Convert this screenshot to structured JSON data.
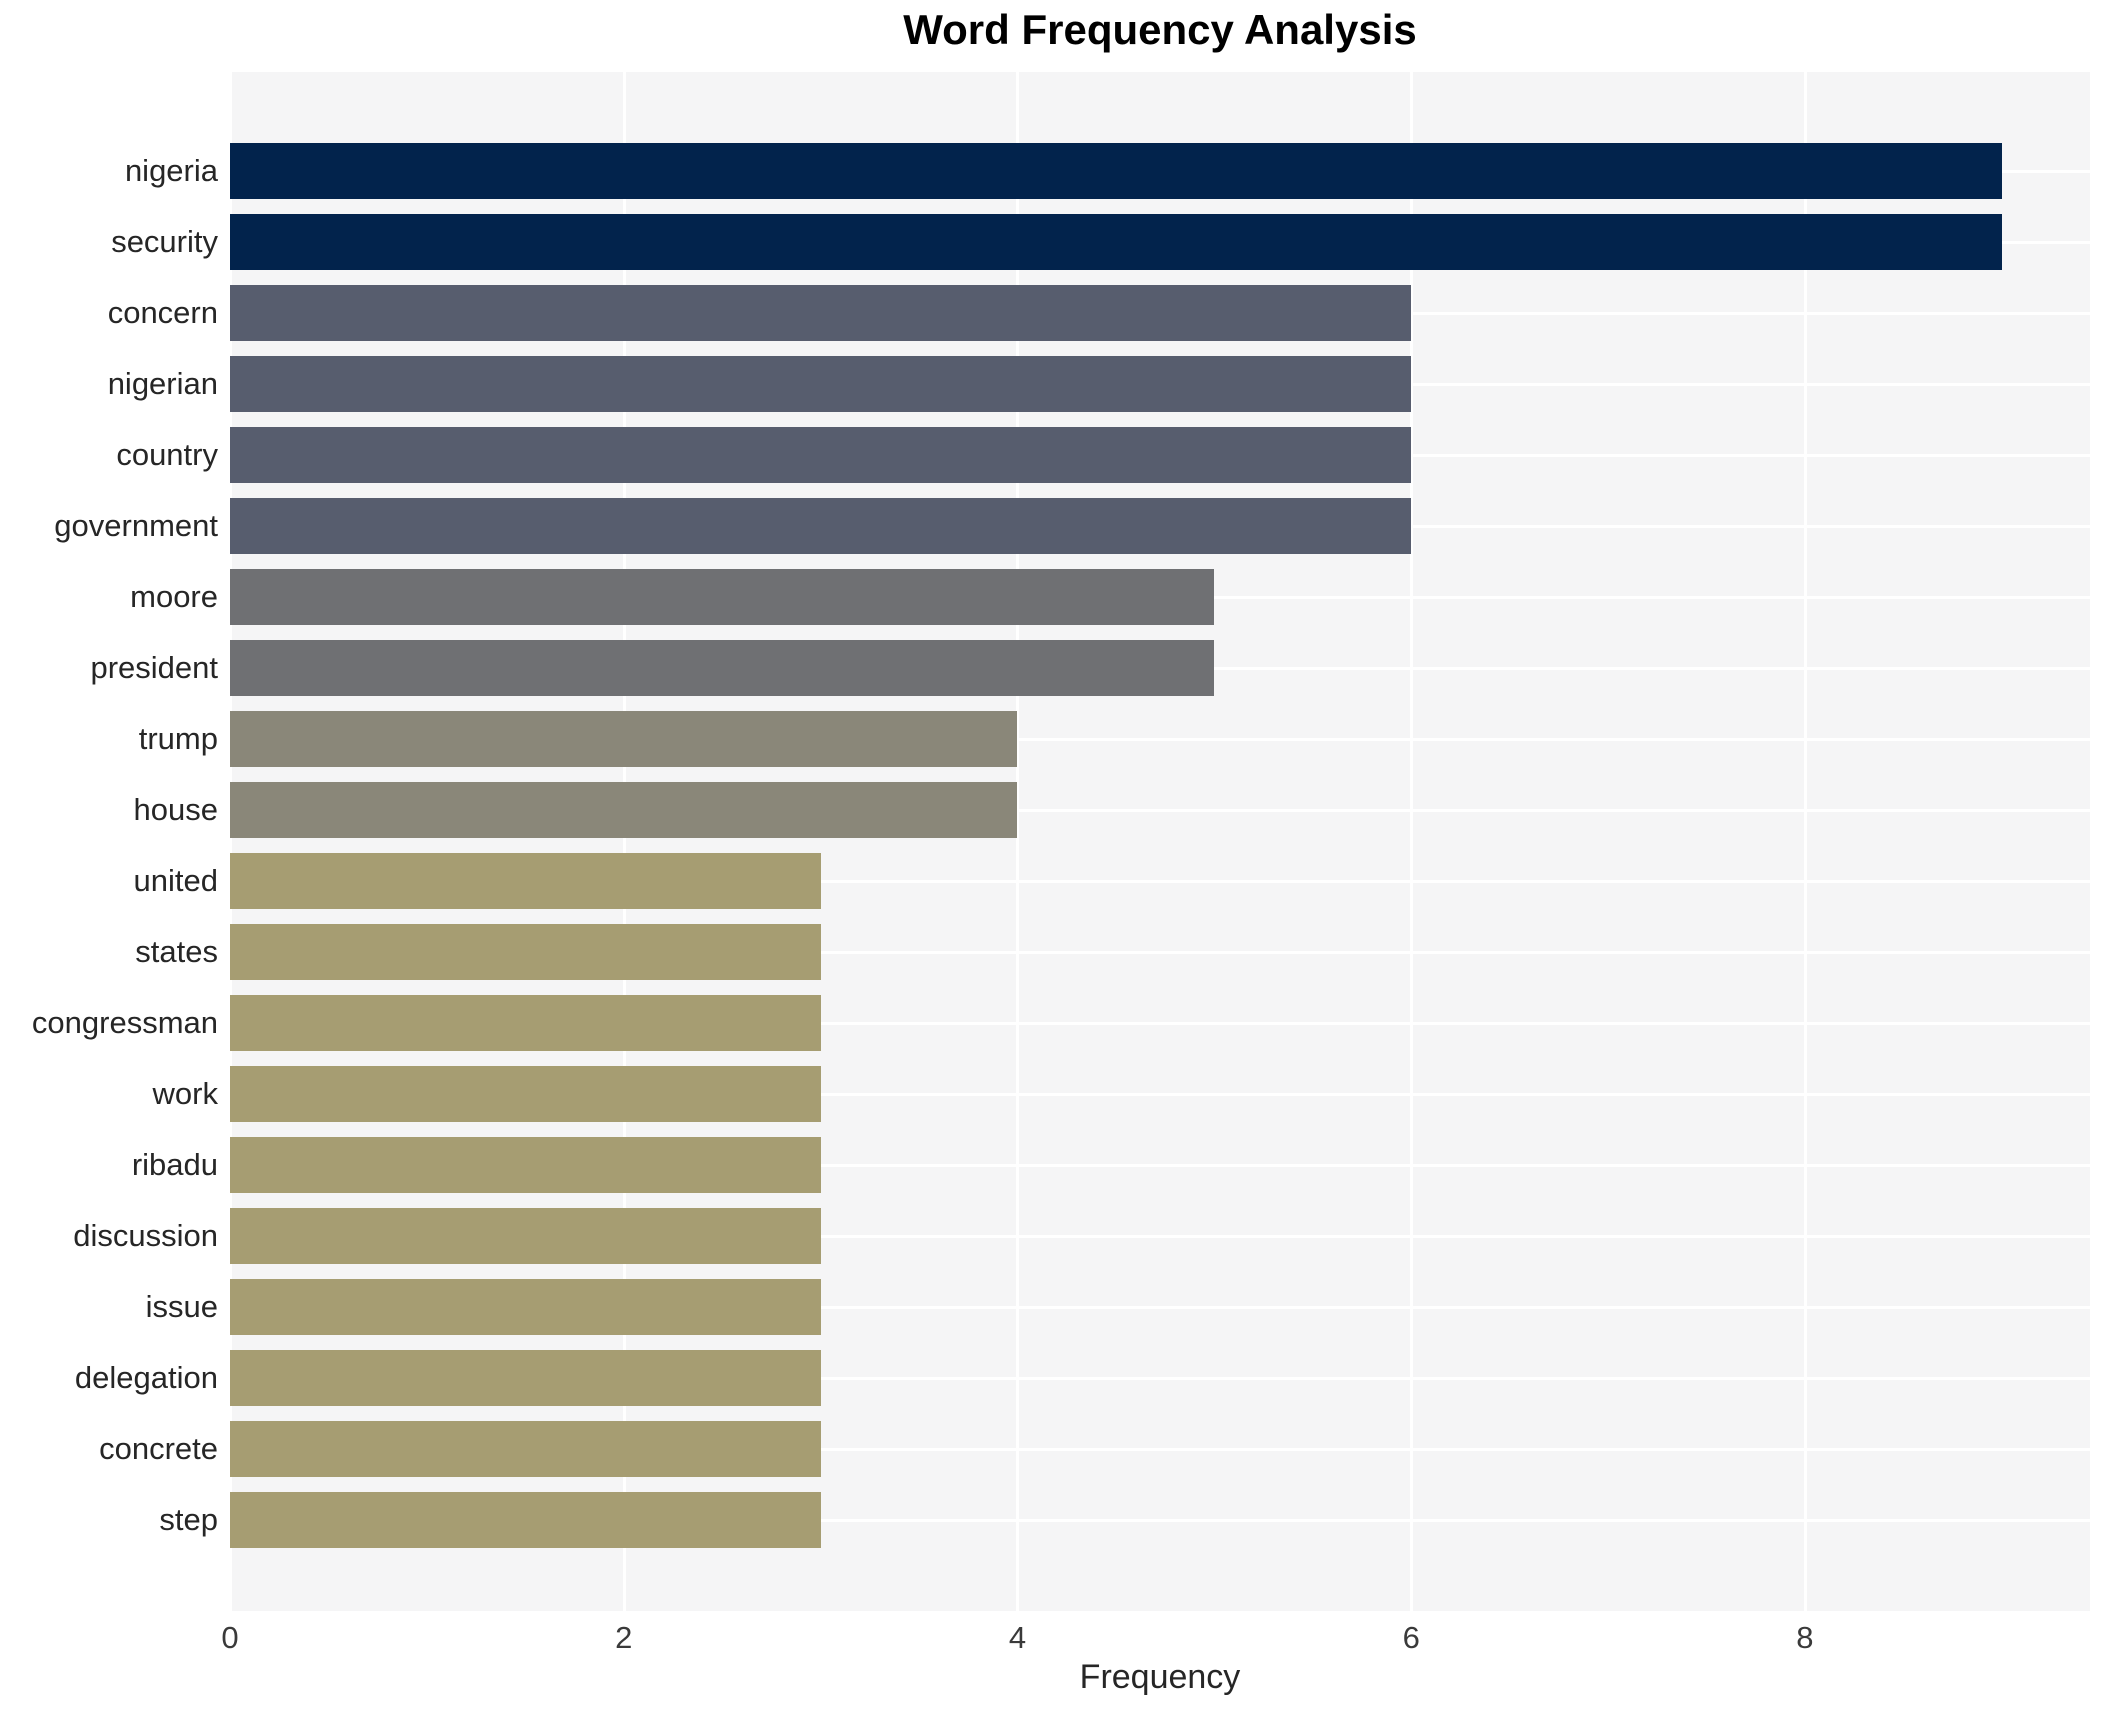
{
  "chart_data": {
    "type": "bar",
    "orientation": "horizontal",
    "title": "Word Frequency Analysis",
    "xlabel": "Frequency",
    "ylabel": "",
    "xlim": [
      0,
      9.448
    ],
    "x_ticks": [
      0,
      2,
      4,
      6,
      8
    ],
    "grid": true,
    "legend_position": "none",
    "plot_background": "#f5f5f6",
    "grid_color": "#ffffff",
    "categories": [
      "nigeria",
      "security",
      "concern",
      "nigerian",
      "country",
      "government",
      "moore",
      "president",
      "trump",
      "house",
      "united",
      "states",
      "congressman",
      "work",
      "ribadu",
      "discussion",
      "issue",
      "delegation",
      "concrete",
      "step"
    ],
    "values": [
      9,
      9,
      6,
      6,
      6,
      6,
      5,
      5,
      4,
      4,
      3,
      3,
      3,
      3,
      3,
      3,
      3,
      3,
      3,
      3
    ],
    "bar_colors": [
      "#02234c",
      "#02234c",
      "#575d6e",
      "#575d6e",
      "#575d6e",
      "#575d6e",
      "#6f7073",
      "#6f7073",
      "#8a8779",
      "#8a8779",
      "#a69d72",
      "#a69d72",
      "#a69d72",
      "#a69d72",
      "#a69d72",
      "#a69d72",
      "#a69d72",
      "#a69d72",
      "#a69d72",
      "#a69d72"
    ]
  }
}
